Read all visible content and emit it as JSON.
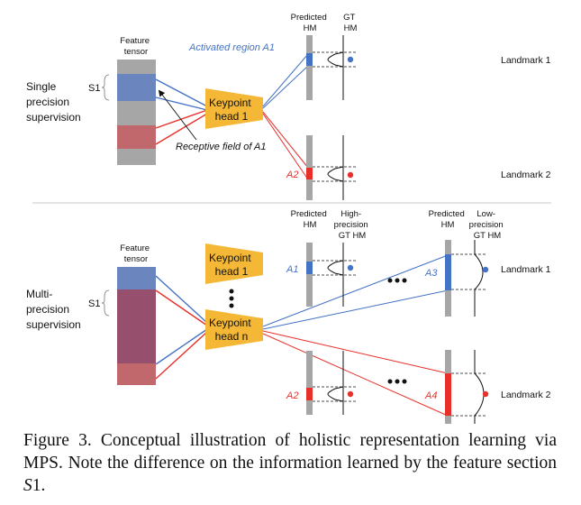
{
  "colors": {
    "blue": "#4472c4",
    "red": "#e8302a",
    "gray": "#a6a6a6",
    "feature_blue": "#6b86bf",
    "feature_red": "#c0686c",
    "feature_purple": "#96506e",
    "head_yellow": "#f4b836"
  },
  "top": {
    "feature_tensor_label": [
      "Feature",
      "tensor"
    ],
    "supervision_label": [
      "Single",
      "precision",
      "supervision"
    ],
    "s1_label": "S1",
    "keypoint_head": [
      "Keypoint",
      "head 1"
    ],
    "predicted_hm": [
      "Predicted",
      "HM"
    ],
    "gt_hm": [
      "GT",
      "HM"
    ],
    "activated_region": "Activated region A1",
    "receptive_field": "Receptive field of A1",
    "a2": "A2",
    "landmark1": "Landmark 1",
    "landmark2": "Landmark 2"
  },
  "bottom": {
    "feature_tensor_label": [
      "Feature",
      "tensor"
    ],
    "supervision_label": [
      "Multi-",
      "precision",
      "supervision"
    ],
    "s1_label": "S1",
    "keypoint_head_1": [
      "Keypoint",
      "head 1"
    ],
    "keypoint_head_n": [
      "Keypoint",
      "head n"
    ],
    "predicted_hm_a": [
      "Predicted",
      "HM"
    ],
    "high_precision_gt": [
      "High-",
      "precision",
      "GT HM"
    ],
    "predicted_hm_b": [
      "Predicted",
      "HM"
    ],
    "low_precision_gt": [
      "Low-",
      "precision",
      "GT HM"
    ],
    "a1": "A1",
    "a2": "A2",
    "a3": "A3",
    "a4": "A4",
    "landmark1": "Landmark 1",
    "landmark2": "Landmark 2"
  },
  "caption": {
    "text": "Figure 3. Conceptual illustration of holistic representation learning via MPS. Note the difference on the information learned by the feature section ",
    "section_symbol": "S",
    "section_number": "1",
    "end": "."
  }
}
